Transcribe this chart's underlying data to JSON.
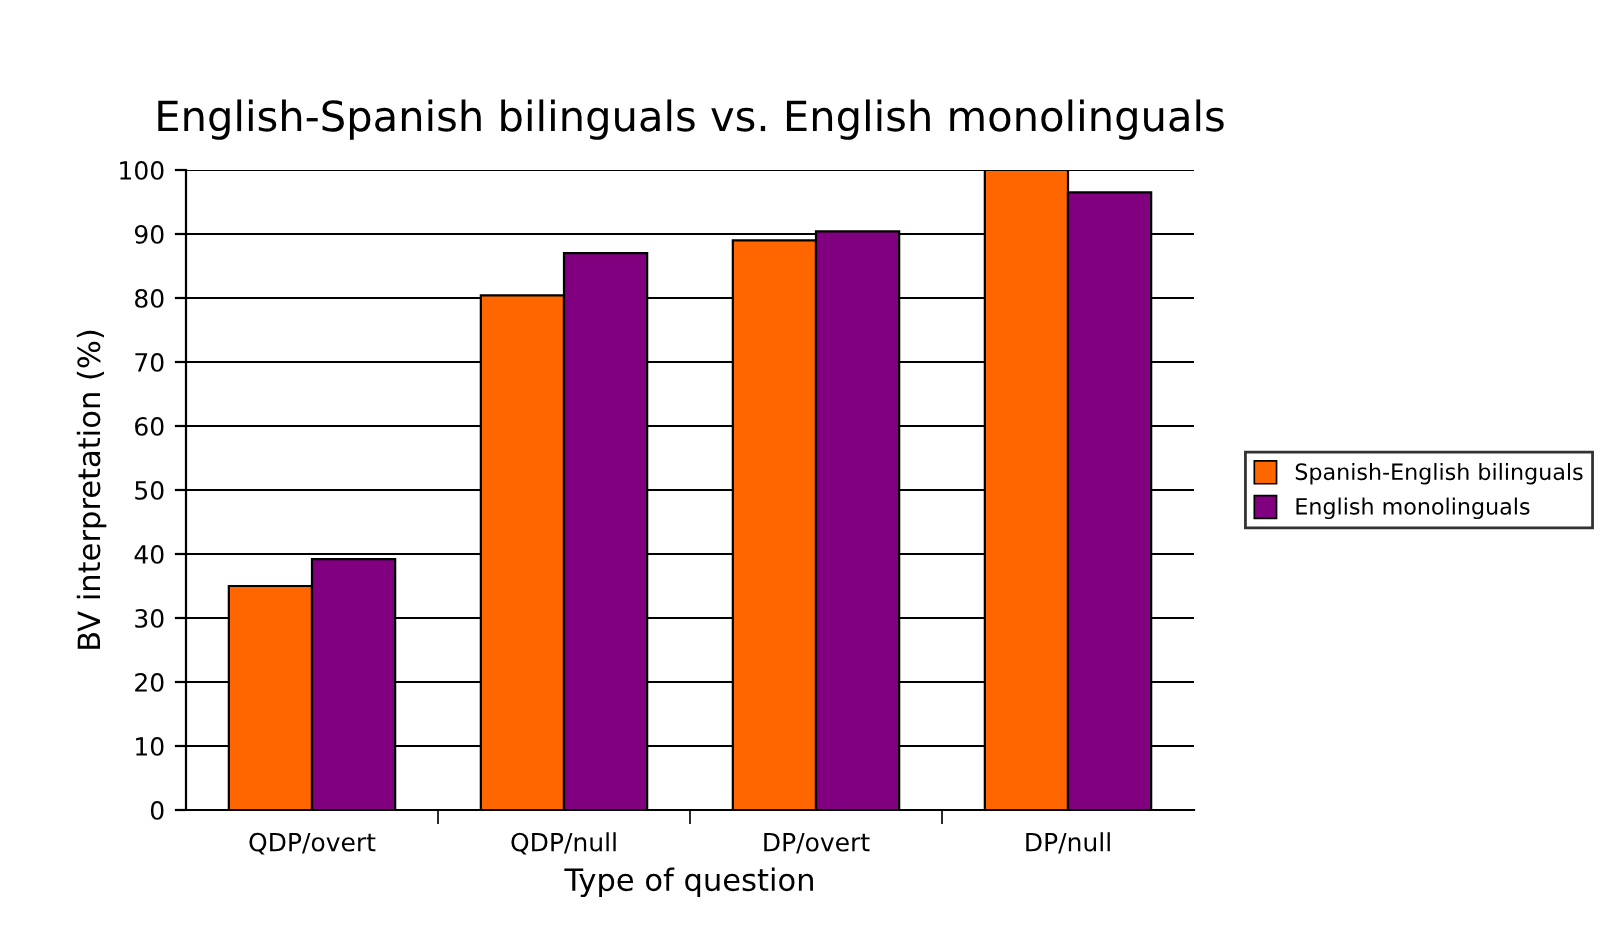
{
  "chart_data": {
    "type": "bar",
    "title": "English-Spanish bilinguals vs. English monolinguals",
    "xlabel": "Type of question",
    "ylabel": "BV interpretation (%)",
    "categories": [
      "QDP/overt",
      "QDP/null",
      "DP/overt",
      "DP/null"
    ],
    "series": [
      {
        "name": "Spanish-English bilinguals",
        "color": "#ff6600",
        "values": [
          35.0,
          80.4,
          89.0,
          100
        ]
      },
      {
        "name": "English monolinguals",
        "color": "#800080",
        "values": [
          39.2,
          87.0,
          90.4,
          96.5
        ]
      }
    ],
    "ylim": [
      0,
      100
    ],
    "yticks": [
      0,
      10,
      20,
      30,
      40,
      50,
      60,
      70,
      80,
      90,
      100
    ],
    "grid": "y",
    "legend": "right"
  }
}
